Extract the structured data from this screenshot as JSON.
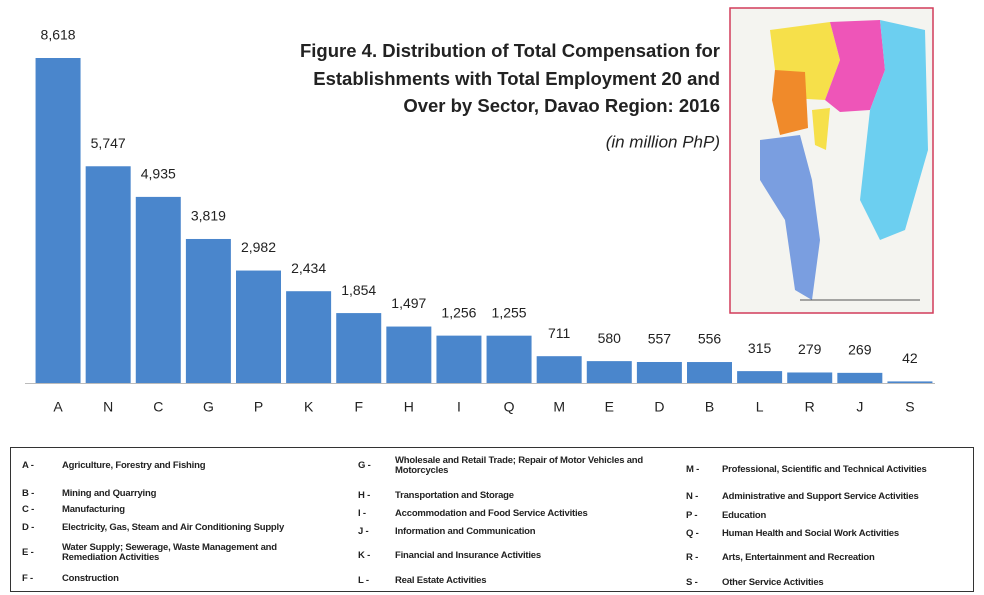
{
  "chart_data": {
    "type": "bar",
    "title": [
      "Figure 4.  Distribution of Total Compensation for",
      "Establishments with Total Employment 20 and",
      "Over by Sector, Davao Region: 2016"
    ],
    "subtitle": "(in million PhP)",
    "categories": [
      "A",
      "N",
      "C",
      "G",
      "P",
      "K",
      "F",
      "H",
      "I",
      "Q",
      "M",
      "E",
      "D",
      "B",
      "L",
      "R",
      "J",
      "S"
    ],
    "values": [
      8618,
      5747,
      4935,
      3819,
      2982,
      2434,
      1854,
      1497,
      1256,
      1255,
      711,
      580,
      557,
      556,
      315,
      279,
      269,
      42
    ],
    "value_labels": [
      "8,618",
      "5,747",
      "4,935",
      "3,819",
      "2,982",
      "2,434",
      "1,854",
      "1,497",
      "1,256",
      "1,255",
      "711",
      "580",
      "557",
      "556",
      "315",
      "279",
      "269",
      "42"
    ],
    "color": "#4a86cc"
  },
  "legend": {
    "columns": [
      [
        {
          "code": "A -",
          "text": "Agriculture, Forestry and Fishing"
        },
        {
          "code": "B -",
          "text": "Mining and Quarrying"
        },
        {
          "code": "C -",
          "text": "Manufacturing"
        },
        {
          "code": "D -",
          "text": "Electricity, Gas, Steam and Air Conditioning Supply"
        },
        {
          "code": "E -",
          "text": "Water Supply; Sewerage, Waste Management and Remediation Activities"
        },
        {
          "code": "F -",
          "text": "Construction"
        }
      ],
      [
        {
          "code": "G -",
          "text": "Wholesale and Retail Trade; Repair of Motor Vehicles and Motorcycles"
        },
        {
          "code": "H -",
          "text": "Transportation and Storage"
        },
        {
          "code": "I -",
          "text": "Accommodation and Food Service Activities"
        },
        {
          "code": "J -",
          "text": "Information and Communication"
        },
        {
          "code": "K -",
          "text": "Financial and Insurance Activities"
        },
        {
          "code": "L -",
          "text": "Real Estate Activities"
        }
      ],
      [
        {
          "code": "M -",
          "text": "Professional, Scientific and Technical Activities"
        },
        {
          "code": "N -",
          "text": "Administrative and Support Service Activities"
        },
        {
          "code": "P -",
          "text": "Education"
        },
        {
          "code": "Q -",
          "text": "Human Health and Social Work Activities"
        },
        {
          "code": "R -",
          "text": "Arts, Entertainment and Recreation"
        },
        {
          "code": "S -",
          "text": "Other Service Activities"
        }
      ]
    ]
  }
}
